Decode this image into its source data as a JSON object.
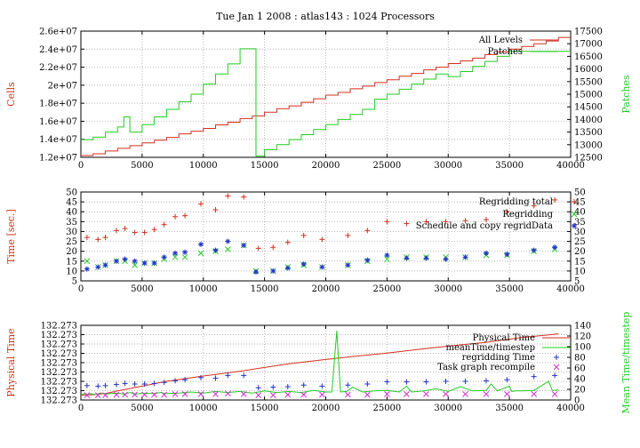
{
  "figure_title": "Tue Jan 1 2008 : atlas143 : 1024 Processors",
  "chart_data": [
    {
      "type": "line",
      "ylabel": "Cells",
      "y2label": "Patches",
      "xlim": [
        0,
        40000
      ],
      "ylim": [
        12000000,
        26000000
      ],
      "y2lim": [
        12500,
        17500
      ],
      "xticks": [
        "0",
        "5000",
        "10000",
        "15000",
        "20000",
        "25000",
        "30000",
        "35000",
        "40000"
      ],
      "yticks": [
        "1.2e+07",
        "1.4e+07",
        "1.6e+07",
        "1.8e+07",
        "2e+07",
        "2.2e+07",
        "2.4e+07",
        "2.6e+07"
      ],
      "y2ticks": [
        "12500",
        "13000",
        "13500",
        "14000",
        "14500",
        "15000",
        "15500",
        "16000",
        "16500",
        "17000",
        "17500"
      ],
      "grid": true,
      "legend_position": "top-right",
      "colors": {
        "red": "#d32f1e",
        "green": "#22cc22",
        "blue": "#2233cc",
        "magenta": "#cc33cc"
      },
      "series": [
        {
          "name": "All Levels",
          "axis": "left",
          "color": "red",
          "style": "step",
          "x": [
            0,
            1000,
            2000,
            3000,
            4000,
            5000,
            6000,
            7000,
            8000,
            9000,
            10000,
            11000,
            12000,
            13000,
            14000,
            15000,
            16000,
            17000,
            18000,
            19000,
            20000,
            21000,
            22000,
            23000,
            24000,
            25000,
            26000,
            27000,
            28000,
            29000,
            30000,
            31000,
            32000,
            33000,
            34000,
            35000,
            36000,
            37000,
            38000,
            39000
          ],
          "values": [
            12200000,
            12400000,
            12700000,
            13000000,
            13300000,
            13600000,
            13900000,
            14200000,
            14600000,
            14900000,
            15200000,
            15600000,
            15900000,
            16300000,
            16600000,
            17000000,
            17400000,
            17700000,
            18100000,
            18500000,
            18900000,
            19200000,
            19600000,
            19900000,
            20300000,
            20600000,
            21000000,
            21300000,
            21700000,
            22000000,
            22400000,
            22700000,
            23000000,
            23400000,
            23700000,
            24000000,
            24300000,
            24600000,
            24900000,
            25300000
          ]
        },
        {
          "name": "Patches",
          "axis": "right",
          "color": "green",
          "style": "step",
          "x": [
            0,
            1000,
            2000,
            3000,
            3500,
            4000,
            5000,
            6000,
            7000,
            8000,
            9000,
            10000,
            11000,
            12000,
            13000,
            14300,
            15000,
            16000,
            17000,
            18000,
            19000,
            20000,
            21000,
            22000,
            23000,
            24000,
            25000,
            26000,
            27000,
            28000,
            29000,
            30000,
            31000,
            32000,
            33000,
            34000,
            35000,
            36000,
            37000,
            38000,
            39000
          ],
          "values": [
            13200,
            13300,
            13500,
            13700,
            14100,
            13500,
            13800,
            14100,
            14400,
            14700,
            15000,
            15400,
            15800,
            16200,
            16800,
            12550,
            12800,
            13000,
            13200,
            13400,
            13600,
            13800,
            14000,
            14200,
            14400,
            14800,
            15000,
            15200,
            15400,
            15600,
            15800,
            15700,
            15900,
            16100,
            16300,
            16500,
            16700,
            16700,
            16700,
            16700,
            16700
          ]
        }
      ]
    },
    {
      "type": "scatter",
      "ylabel": "Time [sec.]",
      "xlim": [
        0,
        40000
      ],
      "ylim": [
        5,
        50
      ],
      "y2lim": [
        5,
        50
      ],
      "xticks": [
        "0",
        "5000",
        "10000",
        "15000",
        "20000",
        "25000",
        "30000",
        "35000",
        "40000"
      ],
      "yticks": [
        "5",
        "10",
        "15",
        "20",
        "25",
        "30",
        "35",
        "40",
        "45",
        "50"
      ],
      "y2ticks": [
        "5",
        "10",
        "15",
        "20",
        "25",
        "30",
        "35",
        "40",
        "45",
        "50"
      ],
      "grid": true,
      "legend_position": "top-right",
      "series": [
        {
          "name": "Regridding total",
          "marker": "+",
          "color": "red",
          "x": [
            500,
            1400,
            2000,
            2900,
            3600,
            4400,
            5200,
            6000,
            6800,
            7700,
            8500,
            9800,
            11000,
            12000,
            13300,
            14500,
            15700,
            16900,
            18200,
            19700,
            21800,
            23400,
            25000,
            26600,
            28200,
            29800,
            31400,
            33100,
            34800,
            37000,
            38700
          ],
          "values": [
            27,
            26,
            27,
            30.5,
            31.5,
            29.5,
            29.5,
            31,
            33.5,
            37.5,
            38,
            44,
            41,
            48,
            47.5,
            21.5,
            22,
            24.5,
            28,
            26,
            28,
            30.5,
            35,
            34,
            35,
            35,
            35.5,
            36,
            40,
            43,
            46
          ]
        },
        {
          "name": "Regridding",
          "marker": "x",
          "color": "green",
          "x": [
            500,
            1400,
            2000,
            2900,
            3600,
            4400,
            5200,
            6000,
            6800,
            7700,
            8500,
            9800,
            11000,
            12000,
            13300,
            14300,
            15700,
            16900,
            18200,
            19700,
            21800,
            23400,
            25000,
            26600,
            28200,
            29800,
            31400,
            33100,
            34800,
            37000,
            38700
          ],
          "values": [
            15,
            12,
            13,
            15,
            15,
            13,
            14,
            14,
            16,
            17,
            17,
            19,
            20,
            21,
            23,
            10,
            10,
            12,
            13,
            12,
            13,
            15,
            16,
            17,
            17,
            17,
            17,
            18,
            18,
            20,
            21
          ]
        },
        {
          "name": "Schedule and copy regridData",
          "marker": "*",
          "color": "blue",
          "x": [
            500,
            1400,
            2000,
            2900,
            3600,
            4400,
            5200,
            6000,
            6800,
            7700,
            8500,
            9800,
            11000,
            12000,
            13300,
            14300,
            15700,
            16900,
            18200,
            19700,
            21800,
            23400,
            25000,
            26600,
            28200,
            29800,
            31400,
            33100,
            34800,
            37000,
            38700
          ],
          "values": [
            11,
            12,
            13,
            15,
            16,
            15,
            14,
            14,
            17,
            19,
            19.5,
            23.5,
            20.5,
            25,
            23,
            9.5,
            10,
            11.5,
            13.5,
            12,
            13,
            15.5,
            18,
            16.5,
            16.5,
            16,
            17,
            19,
            18.5,
            20.5,
            22
          ]
        }
      ]
    },
    {
      "type": "line",
      "ylabel": "Physical Time",
      "y2label": "Mean Time/timestep",
      "xlim": [
        0,
        40000
      ],
      "ylim": [
        0,
        140
      ],
      "y2lim": [
        0,
        140
      ],
      "xticks": [
        "0",
        "5000",
        "10000",
        "15000",
        "20000",
        "25000",
        "30000",
        "35000",
        "40000"
      ],
      "yticks": [
        "132.273",
        "132.273",
        "132.273",
        "132.273",
        "132.273",
        "132.273",
        "132.273",
        "132.273",
        "132.273"
      ],
      "y2ticks": [
        "0",
        "20",
        "40",
        "60",
        "80",
        "100",
        "120",
        "140"
      ],
      "grid": true,
      "legend_position": "top-right",
      "series": [
        {
          "name": "Physical Time",
          "axis": "left",
          "color": "red",
          "style": "line",
          "x": [
            0,
            1000,
            2000,
            3000,
            5000,
            7000,
            10000,
            13000,
            15000,
            17000,
            20000,
            22000,
            25000,
            28000,
            30000,
            33000,
            36000,
            39000
          ],
          "values": [
            9,
            10,
            12,
            17,
            26,
            35,
            45,
            54,
            61,
            68,
            76,
            81,
            88,
            96,
            101,
            108,
            117,
            124
          ]
        },
        {
          "name": "meanTime/timestep",
          "axis": "right",
          "color": "green",
          "style": "line",
          "x": [
            0,
            300,
            600,
            800,
            1200,
            1600,
            2000,
            2400,
            3000,
            3500,
            4000,
            4500,
            5000,
            6000,
            6500,
            7000,
            8000,
            9000,
            10000,
            11000,
            12000,
            13000,
            14000,
            15000,
            16000,
            17000,
            18000,
            19000,
            20000,
            20500,
            20900,
            21200,
            21700,
            22200,
            23000,
            24000,
            25000,
            26000,
            26600,
            27000,
            28000,
            29000,
            30000,
            31000,
            32000,
            33100,
            33500,
            34000,
            35000,
            35200,
            35500,
            36000,
            37000,
            38200,
            38500,
            39000
          ],
          "values": [
            10,
            12,
            10,
            12,
            10,
            13,
            11,
            12,
            13,
            11,
            14,
            11,
            13,
            12,
            14,
            12,
            13,
            15,
            13,
            16,
            14,
            16,
            13,
            17,
            14,
            16,
            14,
            18,
            15,
            15,
            130,
            15,
            16,
            24,
            15,
            17,
            18,
            15,
            26,
            15,
            17,
            21,
            16,
            25,
            17,
            18,
            30,
            17,
            26,
            16,
            17,
            17,
            18,
            35,
            18,
            19
          ]
        },
        {
          "name": "regridding Time",
          "marker": "+",
          "axis": "right",
          "color": "blue",
          "x": [
            500,
            1400,
            2000,
            2900,
            3600,
            4400,
            5200,
            6000,
            6800,
            7700,
            8500,
            9800,
            11000,
            12000,
            13300,
            14500,
            15700,
            16900,
            18200,
            19700,
            21800,
            23400,
            25000,
            26600,
            28200,
            29800,
            31400,
            33100,
            34800,
            37000,
            38700
          ],
          "values": [
            27,
            26,
            27,
            29,
            31,
            30,
            30,
            31,
            33,
            36,
            38,
            42,
            41,
            46,
            46,
            23,
            24,
            25,
            28,
            26,
            28,
            30,
            34,
            34,
            34,
            35,
            35,
            36,
            38,
            44,
            46
          ]
        },
        {
          "name": "Task graph recompile",
          "marker": "x",
          "axis": "right",
          "color": "magenta",
          "x": [
            500,
            1400,
            2000,
            2900,
            3600,
            4400,
            5200,
            6000,
            6800,
            7700,
            8500,
            9800,
            11000,
            12000,
            13300,
            14500,
            15700,
            16900,
            18200,
            19700,
            21800,
            23400,
            25000,
            26600,
            28200,
            29800,
            31400,
            33100,
            34800,
            37000,
            38700
          ],
          "values": [
            9,
            9,
            9,
            10,
            10,
            10,
            10,
            10,
            10,
            11,
            11,
            11,
            11,
            12,
            11,
            9,
            9,
            10,
            10,
            10,
            10,
            10,
            11,
            11,
            11,
            11,
            11,
            11,
            11,
            11,
            11
          ]
        }
      ]
    }
  ]
}
